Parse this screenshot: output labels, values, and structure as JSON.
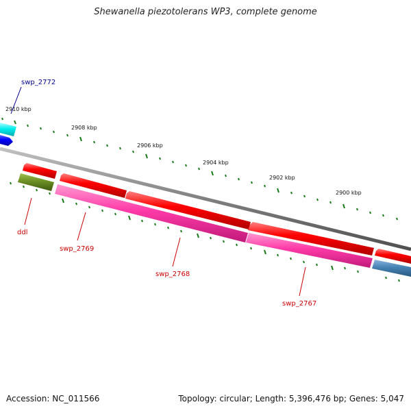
{
  "header": {
    "title": "Shewanella piezotolerans WP3, complete genome"
  },
  "footer": {
    "accession": "Accession: NC_011566",
    "summary": "Topology: circular; Length: 5,396,476 bp; Genes: 5,047"
  },
  "ruler": {
    "labels": [
      "2910 kbp",
      "2908 kbp",
      "2906 kbp",
      "2904 kbp",
      "2902 kbp",
      "2900 kbp"
    ]
  },
  "genes": [
    {
      "name": "swp_2772",
      "color": "#00008b"
    },
    {
      "name": "ddl",
      "color": "#cc0000"
    },
    {
      "name": "swp_2769",
      "color": "#cc0000"
    },
    {
      "name": "swp_2768",
      "color": "#cc0000"
    },
    {
      "name": "swp_2767",
      "color": "#cc0000"
    }
  ],
  "colors": {
    "forward": "#ff0000",
    "reverse_magenta": "#ff33aa",
    "olive": "#6b8e23",
    "cyan": "#00eeee",
    "blue": "#0000ff",
    "steelblue": "#4682b4",
    "backbone": "#808080",
    "ticks": "#1a7a1a"
  }
}
